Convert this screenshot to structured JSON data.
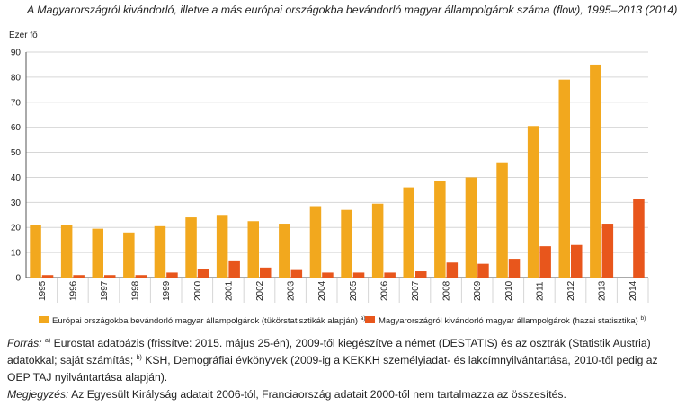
{
  "title": "A Magyarországról kivándorló, illetve a más európai országokba bevándorló magyar állampolgárok száma (flow), 1995–2013 (2014)",
  "colors": {
    "series1": "#f2a81e",
    "series2": "#e8561c",
    "grid": "#d6d6d6",
    "axis": "#555555"
  },
  "chart_data": {
    "type": "bar",
    "ylabel": "Ezer fő",
    "xlabel": "",
    "ylim": [
      0,
      90
    ],
    "yticks": [
      0,
      10,
      20,
      30,
      40,
      50,
      60,
      70,
      80,
      90
    ],
    "grid": true,
    "legend_position": "bottom",
    "categories": [
      "1995",
      "1996",
      "1997",
      "1998",
      "1999",
      "2000",
      "2001",
      "2002",
      "2003",
      "2004",
      "2005",
      "2006",
      "2007",
      "2008",
      "2009",
      "2010",
      "2011",
      "2012",
      "2013",
      "2014"
    ],
    "series": [
      {
        "name": "Európai országokba bevándorló magyar állampolgárok (tükörstatisztikák alapján)",
        "sup": "a)",
        "values": [
          21,
          21,
          19.5,
          18,
          20.5,
          24,
          25,
          22.5,
          21.5,
          28.5,
          27,
          29.5,
          36,
          38.5,
          40,
          46,
          60.5,
          79,
          85,
          null
        ]
      },
      {
        "name": "Magyarországról kivándorló magyar állampolgárok (hazai statisztika)",
        "sup": "b)",
        "values": [
          1,
          1,
          1,
          1,
          2,
          3.5,
          6.5,
          4,
          3,
          2,
          2,
          2,
          2.5,
          6,
          5.5,
          7.5,
          12.5,
          13,
          21.5,
          31.5
        ]
      }
    ]
  },
  "sources": {
    "forras_label": "Forrás:",
    "sup_a": "a)",
    "line_a": "Eurostat adatbázis (frissítve: 2015. május 25-én), 2009-től kiegészítve a német (DESTATIS) és az osztrák (Statistik Austria)",
    "line_a2": "adatokkal; saját számítás;",
    "sup_b": "b)",
    "line_b": "KSH, Demográfiai évkönyvek (2009-ig a KEKKH személyiadat- és lakcímnyilvántartása, 2010-től pedig az",
    "line_b2": "OEP TAJ nyilvántartása alapján).",
    "megj_label": "Megjegyzés:",
    "megj_text": "Az Egyesült Királyság adatait 2006-tól, Franciaország adatait 2000-től nem tartalmazza az összesítés."
  }
}
